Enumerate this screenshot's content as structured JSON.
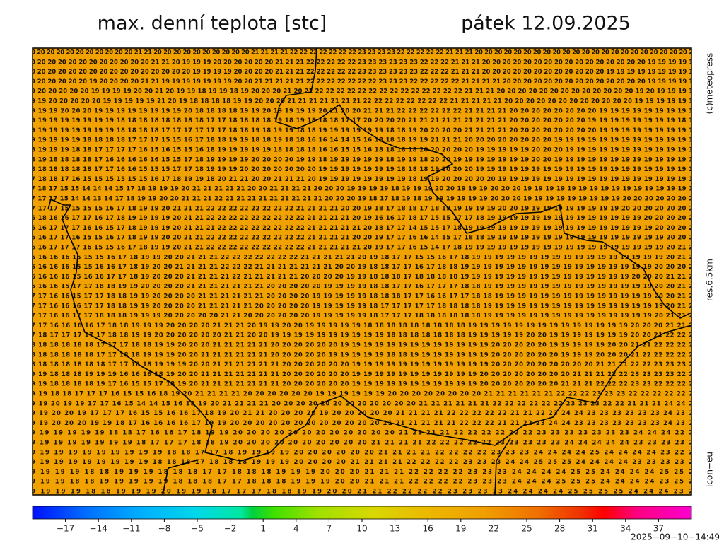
{
  "header": {
    "title": "max. denní teplota [stc]",
    "date": "pátek 12.09.2025"
  },
  "side": {
    "copyright": "(c)meteopress",
    "resolution": "res.6.5km",
    "model": "icon−eu"
  },
  "timestamp": "2025−09−10−14:49",
  "map": {
    "background": "#f2a200",
    "rows": [
      "0 20 20 20 20 20 20 20 20 20 20 21 21 20 20 20 20 20 20 20 20 20 20 21 21 21 21 22 22 22 22 22 22 22 23 23 23 23 22 22 22 22 22 21 21 21 20 20 20 20 20 20 20 20 20 20 20 20 20 20 20 20 20 20 20 20 20 20 2",
      "0 20 20 20 20 20 20 20 20 20 20 20 21 21 20 19 19 19 20 20 20 20 20 20 21 21 21 22 22 22 22 22 23 23 23 23 23 23 22 22 22 21 21 21 20 20 20 20 20 20 20 20 20 20 20 20 20 20 20 20 19 19 19 19 1",
      "0 20 20 20 20 20 20 20 20 20 20 20 20 20 20 20 19 19 19 19 20 20 20 20 21 21 21 22 22 22 22 22 23 23 23 23 23 23 22 22 22 21 21 21 20 20 20 20 20 20 20 20 20 20 20 20 19 19 19 19 19 19 19 19 1",
      "9 20 20 20 20 20 19 20 20 20 20 21 21 19 19 19 19 19 19 19 20 20 21 21 21 21 21 22 22 22 22 22 22 22 23 23 23 22 22 22 22 22 21 21 21 21 20 20 20 20 20 20 20 20 20 20 20 20 20 20 19 19 19 19 1",
      "9 20 20 20 20 20 19 19 19 19 20 20 21 20 19 19 18 19 19 18 19 20 20 20 21 20 21 22 22 22 22 22 22 22 22 22 22 22 22 22 22 21 21 21 20 20 20 20 20 20 20 20 20 20 20 20 20 19 20 19 19 19 1",
      "9 19 20 20 20 20 20 19 19 19 19 19 21 20 19 18 18 18 18 19 19 20 20 20 21 21 21 21 21 21 21 22 22 22 22 22 22 22 22 21 21 21 21 21 20 20 20 20 20 20 20 20 20 20 20 20 19 19 19 19 19 1",
      "9 19 19 20 20 20 19 19 19 19 19 19 19 19 20 18 18 18 18 19 19 20 19 19 19 19 20 21 20 20 21 21 21 22 22 22 22 22 22 21 21 21 21 20 20 20 20 20 20 20 20 19 19 19 19 19 19 19 19 1",
      "9 19 19 19 19 19 19 19 18 18 18 18 18 18 18 18 17 17 18 18 18 18 19 18 19 18 18 18 17 17 20 20 20 20 21 21 21 21 21 21 21 21 21 20 20 20 20 20 20 20 19 19 19 19 19 19 19 19 18 1",
      "9 19 19 19 19 19 19 19 18 18 18 18 17 17 17 17 17 17 18 18 19 18 19 19 18 18 19 19 19 19 19 19 18 18 19 20 20 20 20 21 21 21 21 20 20 20 20 20 20 20 20 19 19 19 19 19 19 19 19 1",
      "9 19 19 19 19 18 18 18 18 17 17 17 15 15 16 17 18 18 19 19 18 18 19 18 18 16 16 14 14 15 16 18 18 18 19 19 21 21 21 20 20 20 20 20 20 20 20 19 19 19 19 19 19 19 19 19 19 19 19 1",
      "8 19 19 19 18 18 17 17 17 17 16 15 16 15 15 16 18 19 19 19 19 19 18 18 18 18 16 16 15 15 16 18 18 18 18 20 20 20 20 20 19 19 19 19 19 20 20 20 19 19 19 19 19 19 19 19 19 19 19 1",
      "8 19 18 18 18 18 17 16 16 16 16 16 15 15 17 18 19 19 19 19 20 20 20 20 19 19 18 19 19 19 19 19 18 19 19 18 20 20 19 19 19 19 19 19 19 20 20 19 19 19 19 19 19 19 19 19 19 19 19 1",
      "8 18 18 18 18 18 17 17 16 16 15 15 15 17 17 18 19 19 19 20 20 20 20 20 20 20 19 19 19 19 19 19 19 18 18 18 19 20 20 20 19 19 19 19 19 19 19 19 19 19 19 19 19 19 19 19 19 19 19 1",
      "7 18 18 17 16 15 15 15 15 15 15 16 17 18 19 19 18 20 21 21 20 20 21 21 21 20 19 19 19 19 19 19 19 19 18 19 19 20 20 20 20 20 19 19 19 19 19 19 19 19 19 19 19 19 19 19 19 19 19 1",
      "7 18 17 15 15 14 14 14 15 17 18 19 19 19 20 21 21 21 21 21 20 20 21 21 21 21 20 20 20 19 19 19 19 18 19 19 19 20 20 19 19 19 20 20 20 19 19 19 19 19 19 19 19 19 19 19 19 19 19 19 1",
      "7 17 17 15 14 14 13 14 17 18 19 19 20 20 21 21 21 22 21 21 21 21 21 21 21 21 21 20 20 20 19 18 17 18 19 18 19 19 19 19 19 19 20 20 20 19 19 19 19 19 19 19 19 19 20 20 20 20 20 20 2",
      "7 17 17 15 15 15 15 16 17 18 19 19 20 21 21 21 22 22 22 22 22 22 22 22 21 21 21 21 20 20 19 18 17 18 18 17 18 19 19 19 19 19 20 20 19 19 19 19 19 19 19 19 19 20 20 20 20 20 20 2",
      "6 18 16 16 17 17 16 17 18 19 19 19 19 20 21 21 22 22 22 22 22 22 22 22 22 21 21 21 21 20 19 16 16 17 18 17 15 15 17 17 18 19 19 19 19 19 19 19 19 19 19 19 19 19 19 20 20 20 20 2",
      "6 16 17 17 17 16 16 15 17 18 19 19 19 20 21 21 21 22 22 22 22 22 22 22 22 21 21 21 21 21 20 18 17 17 14 15 15 17 18 19 19 19 19 19 19 19 19 19 19 19 19 19 19 19 19 19 20 20 20 2",
      "6 16 17 17 16 15 15 16 17 18 19 19 20 20 21 21 22 22 22 22 22 22 22 22 22 21 21 21 21 20 20 19 17 17 16 16 14 15 17 18 18 19 19 19 19 19 19 19 19 19 19 19 19 19 19 19 19 20 20 2",
      "6 16 17 17 17 16 15 15 16 17 18 19 19 20 21 21 22 22 22 22 22 22 22 22 22 21 21 21 21 21 20 19 17 17 16 15 14 17 18 19 19 19 19 19 19 19 19 19 19 19 19 19 19 19 19 19 19 20 21 2",
      "5 16 16 16 15 15 15 16 17 18 19 19 20 20 21 21 21 22 22 22 22 22 22 22 21 21 21 21 21 20 19 18 17 17 15 15 16 17 18 19 19 19 19 19 19 19 19 19 19 19 19 19 19 19 19 19 20 21 2",
      "6 16 16 16 15 15 16 16 17 18 19 20 20 21 21 21 21 22 22 22 21 21 21 21 21 21 21 20 20 19 18 18 17 17 16 17 18 18 19 19 19 19 19 19 19 19 19 19 19 19 19 19 19 19 19 20 20 20 2",
      "6 16 16 16 15 16 16 17 17 18 19 20 20 20 21 21 21 21 22 21 21 21 21 21 20 20 20 20 19 19 18 18 18 17 18 18 18 18 19 19 19 19 19 19 19 19 19 19 19 19 19 19 19 20 20 20 21 21 2",
      "6 16 16 15 17 17 18 18 19 19 20 20 20 20 21 21 21 21 21 21 21 20 20 20 20 20 19 19 19 19 18 18 17 17 16 17 17 17 18 18 19 19 19 19 19 19 19 19 19 19 19 19 19 19 19 20 20 21 2",
      "7 17 16 16 15 17 17 18 18 19 19 20 20 20 20 21 21 21 21 21 21 20 20 20 20 19 19 19 19 19 18 18 18 17 17 16 16 17 17 18 18 19 19 19 19 19 19 19 19 19 19 19 19 19 19 20 20 21 2",
      "7 17 16 16 16 17 17 18 18 19 19 20 20 20 20 21 21 21 21 21 20 20 20 20 20 19 19 19 19 19 18 17 17 17 17 17 18 18 18 18 19 19 19 19 19 19 19 19 19 19 19 19 19 19 19 19 20 21 2",
      "7 17 16 16 17 17 18 18 18 19 19 19 20 20 20 20 20 21 21 20 20 20 20 20 20 19 19 19 19 19 18 17 17 17 18 18 18 18 18 18 19 19 19 19 19 19 19 19 19 19 19 19 19 19 19 20 21 21 2",
      "7 17 16 16 16 16 17 18 18 19 19 19 20 20 20 20 21 21 21 20 19 19 20 20 19 19 19 19 19 18 18 18 18 18 18 18 18 18 19 19 19 19 19 19 19 19 19 19 19 19 19 19 20 20 20 21 21 2",
      "7 18 17 17 17 17 17 18 18 19 19 20 20 20 20 20 20 21 21 20 20 19 19 19 19 19 19 19 19 19 19 18 18 18 18 18 18 18 19 19 19 19 19 20 20 19 19 19 19 19 19 19 20 20 21 22 22 2",
      "8 18 18 18 18 18 17 17 17 18 18 19 19 20 20 20 21 21 21 21 21 20 20 20 20 20 20 19 19 19 19 19 19 19 19 19 19 19 19 19 20 20 20 20 20 19 19 19 19 19 20 20 21 21 22 22 22 2",
      "8 18 18 18 18 18 17 17 18 18 19 19 19 20 20 21 21 21 21 21 21 20 20 20 20 20 19 19 19 19 19 18 18 19 19 19 19 19 19 19 20 20 20 20 20 20 19 19 19 20 20 20 21 22 22 22 22 2",
      "8 18 18 18 18 18 18 17 17 18 18 19 19 19 20 20 21 21 21 21 21 21 20 20 20 20 20 20 19 19 19 19 19 19 19 19 19 19 19 19 20 20 20 20 20 20 20 20 20 21 21 21 22 22 23 23 23 2",
      "9 19 18 18 18 19 19 19 16 16 16 18 19 20 20 21 21 21 21 21 21 21 20 20 20 20 20 20 19 19 19 19 19 19 19 19 19 19 19 20 20 20 20 20 20 20 20 21 21 21 22 22 23 23 23 23 22 2",
      "9 19 18 18 18 18 19 17 16 15 15 17 18 19 20 21 21 21 21 21 21 21 20 20 20 20 20 20 19 19 19 19 19 19 19 19 19 19 19 20 20 20 20 20 20 20 21 21 21 22 22 22 23 23 22 22 22 2",
      "9 19 18 18 17 17 17 16 15 15 16 18 19 20 21 21 21 21 20 20 20 20 20 20 19 19 19 19 19 19 20 20 20 20 20 20 20 20 21 21 21 21 21 21 22 22 22 23 23 23 22 22 22 22 22 2",
      "9 19 20 19 19 17 17 16 15 14 14 15 16 18 19 20 21 21 21 21 20 20 20 20 20 20 20 20 20 20 20 20 21 21 21 21 21 21 22 22 22 22 22 22 23 23 23 22 22 21 21 21 24 24 2",
      "9 19 20 20 19 17 17 17 16 15 15 16 16 17 18 19 20 21 21 20 20 20 20 19 20 20 20 20 20 21 21 21 21 22 22 22 22 22 21 21 22 23 24 24 23 23 23 23 23 23 24 23 2",
      "9 19 20 20 20 19 19 18 17 16 16 16 16 17 19 19 20 20 20 20 20 20 20 20 20 20 20 20 21 21 21 21 21 21 22 22 22 21 21 22 23 24 24 23 23 23 23 23 23 23 24 23 2",
      "9 19 19 19 19 19 18 18 17 16 16 17 18 19 19 20 20 20 20 20 20 20 20 20 20 20 20 21 21 21 21 22 22 22 22 22 22 23 23 23 23 23 23 23 24 24 24 22 2",
      "9 19 19 19 19 19 19 19 18 17 17 17 18 18 19 20 20 20 20 20 20 20 20 20 20 21 21 21 21 22 22 22 22 22 23 23 23 23 23 24 24 24 24 24 23 23 23 23 2",
      "9 19 19 19 19 19 19 19 19 19 18 18 17 17 18 19 19 19 19 20 20 20 20 20 20 21 21 21 21 22 22 22 22 23 23 23 24 24 24 24 25 24 24 24 24 23 22 2",
      "9 19 19 19 19 19 19 19 19 18 18 18 17 18 18 18 19 19 19 20 20 20 20 21 21 21 21 22 22 22 22 23 23 23 24 24 25 25 25 24 24 24 24 23 23 23 23 2",
      "9 19 19 19 18 18 19 19 19 18 18 18 17 17 18 18 18 19 19 19 20 20 20 21 21 21 22 22 22 22 23 23 23 24 24 24 24 25 25 24 24 24 24 25 25 2",
      "9 19 19 18 18 19 19 19 19 19 18 18 18 17 17 18 18 18 19 19 19 20 20 21 21 21 22 22 22 22 23 23 23 24 24 24 25 25 25 24 24 24 24 23 25 2",
      "9 19 19 19 18 18 19 19 19 20 19 19 18 17 17 17 18 18 19 19 20 20 21 21 22 22 22 22 23 23 23 23 24 24 24 24 25 25 25 25 24 24 24 23 2"
    ]
  },
  "colorbar": {
    "range": [
      -20,
      40
    ],
    "stops": [
      [
        -20,
        "#0010ff"
      ],
      [
        -15,
        "#0070ff"
      ],
      [
        -10,
        "#00b0ff"
      ],
      [
        -5,
        "#00d8e8"
      ],
      [
        -1,
        "#00e8a0"
      ],
      [
        0,
        "#00d040"
      ],
      [
        2,
        "#40e000"
      ],
      [
        6,
        "#a0e000"
      ],
      [
        11,
        "#d8d800"
      ],
      [
        16,
        "#ecb800"
      ],
      [
        21,
        "#f0a000"
      ],
      [
        26,
        "#f07000"
      ],
      [
        30,
        "#f03000"
      ],
      [
        32,
        "#ff0000"
      ],
      [
        35,
        "#ff0080"
      ],
      [
        40,
        "#ff00d0"
      ]
    ],
    "ticks": [
      {
        "value": -17,
        "label": "−17"
      },
      {
        "value": -14,
        "label": "−14"
      },
      {
        "value": -11,
        "label": "−11"
      },
      {
        "value": -8,
        "label": "−8"
      },
      {
        "value": -5,
        "label": "−5"
      },
      {
        "value": -2,
        "label": "−2"
      },
      1,
      4,
      7,
      10,
      13,
      16,
      19,
      22,
      25,
      28,
      31,
      34,
      37
    ]
  }
}
